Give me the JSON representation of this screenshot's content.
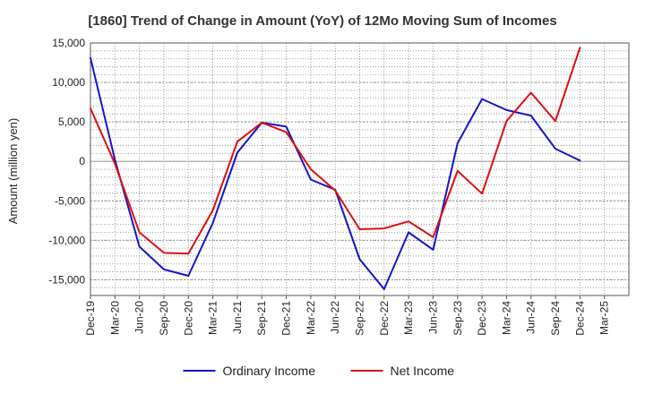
{
  "chart_data": {
    "type": "line",
    "title": "[1860]  Trend of Change in Amount (YoY) of 12Mo Moving Sum of Incomes",
    "ylabel": "Amount (million yen)",
    "xlabel": "",
    "ylim": [
      -17000,
      15000
    ],
    "yticks": [
      15000,
      10000,
      5000,
      0,
      -5000,
      -10000,
      -15000
    ],
    "ytick_labels": [
      "15,000",
      "10,000",
      "5,000",
      "0",
      "-5,000",
      "-10,000",
      "-15,000"
    ],
    "x": [
      "Dec-19",
      "Mar-20",
      "Jun-20",
      "Sep-20",
      "Dec-20",
      "Mar-21",
      "Jun-21",
      "Sep-21",
      "Dec-21",
      "Mar-22",
      "Jun-22",
      "Sep-22",
      "Dec-22",
      "Mar-23",
      "Jun-23",
      "Sep-23",
      "Dec-23",
      "Mar-24",
      "Jun-24",
      "Sep-24",
      "Dec-24",
      "Mar-25"
    ],
    "grid": true,
    "legend_position": "bottom",
    "series": [
      {
        "name": "Ordinary Income",
        "color": "#1515cc",
        "values": [
          13100,
          200,
          -10800,
          -13700,
          -14500,
          -7800,
          1100,
          4900,
          4400,
          -2300,
          -3600,
          -12400,
          -16200,
          -9000,
          -11200,
          2300,
          7900,
          6500,
          5800,
          1600,
          100,
          null
        ]
      },
      {
        "name": "Net Income",
        "color": "#e00e0e",
        "values": [
          6700,
          -300,
          -9000,
          -11600,
          -11700,
          -6200,
          2500,
          4900,
          3700,
          -1000,
          -3700,
          -8600,
          -8500,
          -7600,
          -9600,
          -1200,
          -4100,
          5100,
          8700,
          5100,
          14400,
          null
        ]
      }
    ]
  }
}
